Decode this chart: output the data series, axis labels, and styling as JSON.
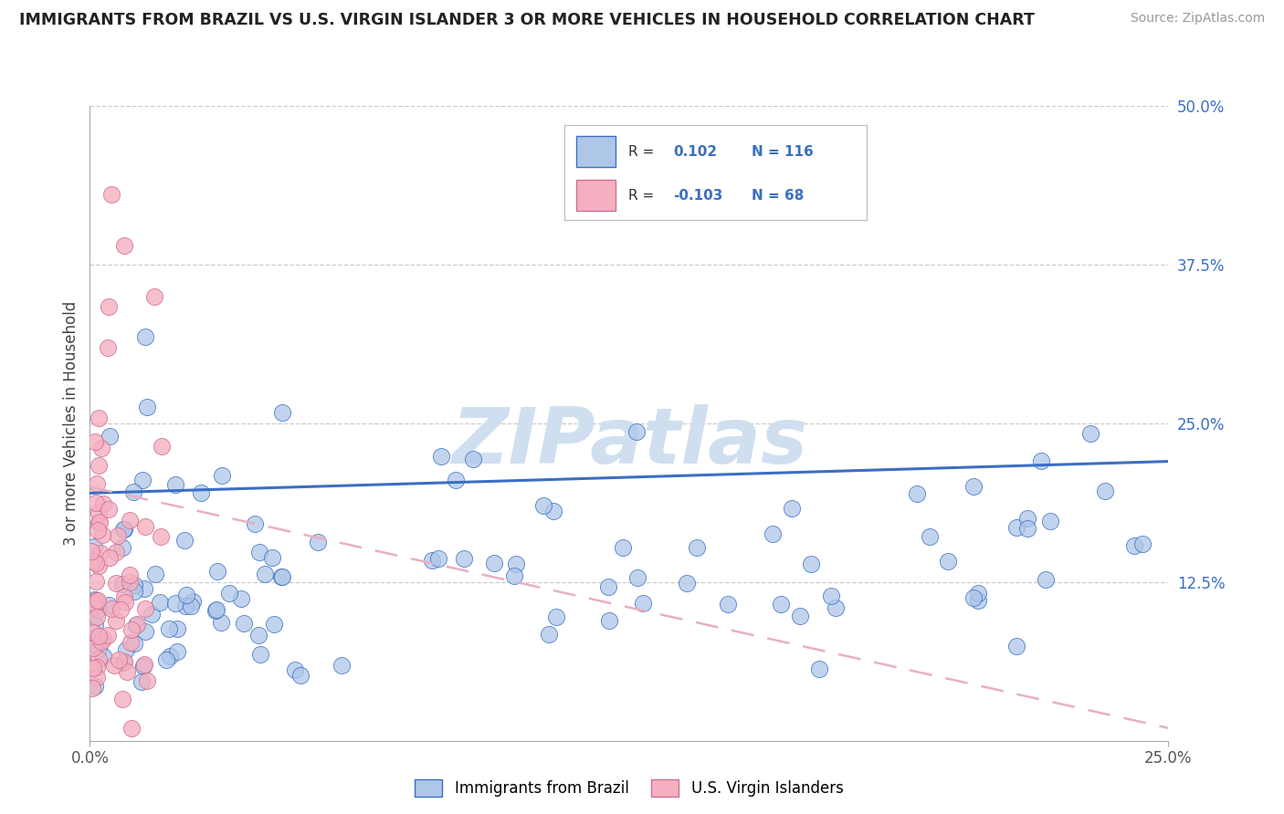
{
  "title": "IMMIGRANTS FROM BRAZIL VS U.S. VIRGIN ISLANDER 3 OR MORE VEHICLES IN HOUSEHOLD CORRELATION CHART",
  "source": "Source: ZipAtlas.com",
  "xmin": 0.0,
  "xmax": 0.25,
  "ymin": 0.0,
  "ymax": 0.5,
  "ylabel": "3 or more Vehicles in Household",
  "legend_label_blue": "Immigrants from Brazil",
  "legend_label_pink": "U.S. Virgin Islanders",
  "r_blue": 0.102,
  "n_blue": 116,
  "r_pink": -0.103,
  "n_pink": 68,
  "blue_color": "#aec6e8",
  "pink_color": "#f4afc0",
  "line_blue": "#3a6fc4",
  "line_pink": "#e8a0b0",
  "watermark": "ZIPatlas",
  "watermark_color": "#d0dff0",
  "yticks": [
    0.125,
    0.25,
    0.375,
    0.5
  ],
  "ytick_labels": [
    "12.5%",
    "25.0%",
    "37.5%",
    "50.0%"
  ],
  "xticks": [
    0.0,
    0.25
  ],
  "xtick_labels": [
    "0.0%",
    "25.0%"
  ]
}
